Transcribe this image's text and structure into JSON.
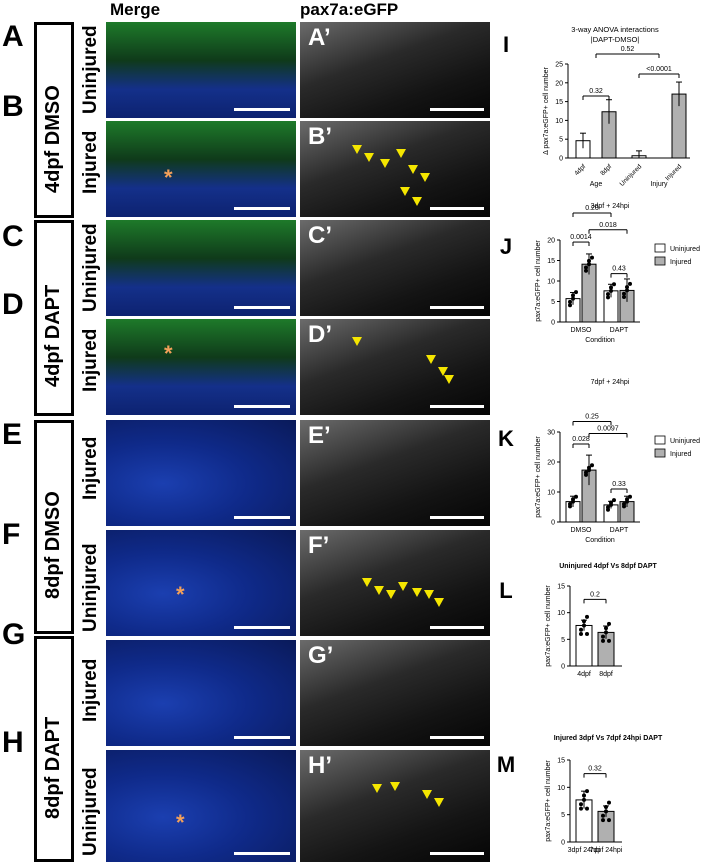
{
  "headers": {
    "merge": "Merge",
    "gfp": "pax7a:eGFP"
  },
  "rows": [
    {
      "letter": "A",
      "prime": "A’",
      "injury": "Uninjured"
    },
    {
      "letter": "B",
      "prime": "B’",
      "injury": "Injured"
    },
    {
      "letter": "C",
      "prime": "C’",
      "injury": "Uninjured"
    },
    {
      "letter": "D",
      "prime": "D’",
      "injury": "Injured"
    },
    {
      "letter": "E",
      "prime": "E’",
      "injury": "Injured"
    },
    {
      "letter": "F",
      "prime": "F’",
      "injury": "Uninjured"
    },
    {
      "letter": "G",
      "prime": "G’",
      "injury": "Injured"
    },
    {
      "letter": "H",
      "prime": "H’",
      "injury": "Uninjured"
    }
  ],
  "conditions": [
    "4dpf DMSO",
    "4dpf DAPT",
    "8dpf DMSO",
    "8dpf DAPT"
  ],
  "chart_data": [
    {
      "panel": "I",
      "type": "bar",
      "title": "3-way ANOVA interactions",
      "subtitle": "|DAPT-DMSO|",
      "ylabel": "Δ pax7a:eGFP+ cell number",
      "ylim": [
        0,
        25
      ],
      "yticks": [
        0,
        5,
        10,
        15,
        20,
        25
      ],
      "groups": [
        {
          "label": "Age",
          "categories": [
            "4dpf",
            "8dpf"
          ],
          "values": [
            4.6,
            12.3
          ],
          "errors": [
            2.0,
            3.2
          ],
          "colors": [
            "#ffffff",
            "#b0b0b0"
          ]
        },
        {
          "label": "Injury",
          "categories": [
            "Uninjured",
            "Injured"
          ],
          "values": [
            0.6,
            17.0
          ],
          "errors": [
            1.3,
            3.2
          ],
          "colors": [
            "#ffffff",
            "#b0b0b0"
          ]
        }
      ],
      "annotations": [
        "0.32",
        "<0.0001",
        "0.52"
      ]
    },
    {
      "panel": "J",
      "type": "bar",
      "title": "3dpf + 24hpi",
      "xlabel": "Condition",
      "ylabel": "pax7a:eGFP+ cell number",
      "ylim": [
        0,
        20
      ],
      "yticks": [
        0,
        5,
        10,
        15,
        20
      ],
      "categories": [
        "DMSO",
        "DAPT"
      ],
      "series": [
        {
          "name": "Uninjured",
          "values": [
            5.7,
            7.6
          ],
          "errors": [
            1.5,
            1.6
          ],
          "color": "#ffffff"
        },
        {
          "name": "Injured",
          "values": [
            14.1,
            7.7
          ],
          "errors": [
            2.5,
            2.8
          ],
          "color": "#b0b0b0"
        }
      ],
      "annotations": [
        "0.0014",
        "0.43",
        "0.018",
        "0.20"
      ]
    },
    {
      "panel": "K",
      "type": "bar",
      "title": "7dpf + 24hpi",
      "xlabel": "Condition",
      "ylabel": "pax7a:eGFP+ cell number",
      "ylim": [
        0,
        30
      ],
      "yticks": [
        0,
        10,
        20,
        30
      ],
      "categories": [
        "DMSO",
        "DAPT"
      ],
      "series": [
        {
          "name": "Uninjured",
          "values": [
            6.8,
            5.7
          ],
          "errors": [
            1.8,
            1.2
          ],
          "color": "#ffffff"
        },
        {
          "name": "Injured",
          "values": [
            17.3,
            6.8
          ],
          "errors": [
            5.0,
            1.8
          ],
          "color": "#b0b0b0"
        }
      ],
      "annotations": [
        "0.028",
        "0.33",
        "0.0097",
        "0.25"
      ]
    },
    {
      "panel": "L",
      "type": "bar",
      "title": "Uninjured 4dpf Vs 8dpf DAPT",
      "ylabel": "pax7a:eGFP+ cell number",
      "ylim": [
        0,
        15
      ],
      "yticks": [
        0,
        5,
        10,
        15
      ],
      "categories": [
        "4dpf",
        "8dpf"
      ],
      "values": [
        7.6,
        6.3
      ],
      "errors": [
        1.0,
        1.2
      ],
      "colors": [
        "#ffffff",
        "#b0b0b0"
      ],
      "annotations": [
        "0.2"
      ]
    },
    {
      "panel": "M",
      "type": "bar",
      "title": "Injured 3dpf Vs 7dpf 24hpi DAPT",
      "ylabel": "pax7a:eGFP+ cell number",
      "ylim": [
        0,
        15
      ],
      "yticks": [
        0,
        5,
        10,
        15
      ],
      "categories": [
        "3dpf 24hpi",
        "7dpf 24hpi"
      ],
      "values": [
        7.7,
        5.6
      ],
      "errors": [
        1.6,
        1.0
      ],
      "colors": [
        "#ffffff",
        "#b0b0b0"
      ],
      "annotations": [
        "0.32"
      ]
    }
  ]
}
